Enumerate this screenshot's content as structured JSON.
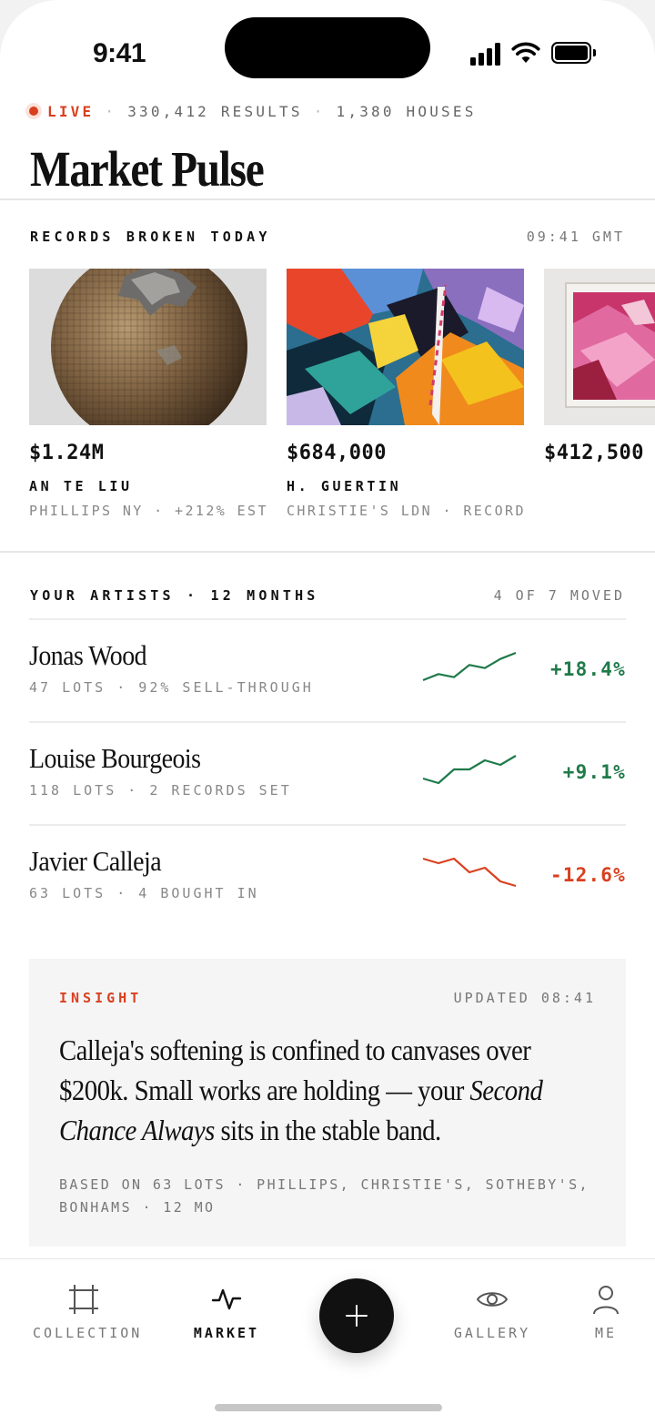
{
  "status_bar": {
    "time": "9:41"
  },
  "header": {
    "live_label": "LIVE",
    "results": "330,412 RESULTS",
    "houses": "1,380 HOUSES",
    "title": "Market Pulse"
  },
  "records": {
    "label": "RECORDS BROKEN TODAY",
    "time": "09:41 GMT",
    "items": [
      {
        "price": "$1.24M",
        "artist": "AN TE LIU",
        "meta": "PHILLIPS NY · +212% EST"
      },
      {
        "price": "$684,000",
        "artist": "H. GUERTIN",
        "meta": "CHRISTIE'S LDN · RECORD"
      },
      {
        "price": "$412,500",
        "artist": "",
        "meta": ""
      }
    ]
  },
  "artists": {
    "label": "YOUR ARTISTS · 12 MONTHS",
    "moved": "4 OF 7 MOVED",
    "rows": [
      {
        "name": "Jonas Wood",
        "sub": "47 LOTS · 92% SELL-THROUGH",
        "change": "+18.4%",
        "color": "#1f7a4a",
        "trend": [
          3,
          5,
          4,
          8,
          7,
          10,
          12
        ]
      },
      {
        "name": "Louise Bourgeois",
        "sub": "118 LOTS · 2 RECORDS SET",
        "change": "+9.1%",
        "color": "#1f7a4a",
        "trend": [
          4,
          3,
          6,
          6,
          8,
          7,
          9
        ]
      },
      {
        "name": "Javier Calleja",
        "sub": "63 LOTS · 4 BOUGHT IN",
        "change": "-12.6%",
        "color": "#d9401f",
        "trend": [
          10,
          9,
          10,
          7,
          8,
          5,
          4
        ]
      }
    ]
  },
  "insight": {
    "label": "INSIGHT",
    "updated": "UPDATED 08:41",
    "text_1": "Calleja's softening is confined to canvases over $200k. Small works are holding — your ",
    "text_em": "Second Chance Always",
    "text_2": " sits in the stable band.",
    "basis": "BASED ON 63 LOTS · PHILLIPS, CHRISTIE'S, SOTHEBY'S, BONHAMS · 12 MO"
  },
  "nav": {
    "collection": "COLLECTION",
    "market": "MARKET",
    "gallery": "GALLERY",
    "me": "ME"
  },
  "colors": {
    "accent": "#d9401f",
    "positive": "#1f7a4a",
    "ink": "#111111"
  }
}
